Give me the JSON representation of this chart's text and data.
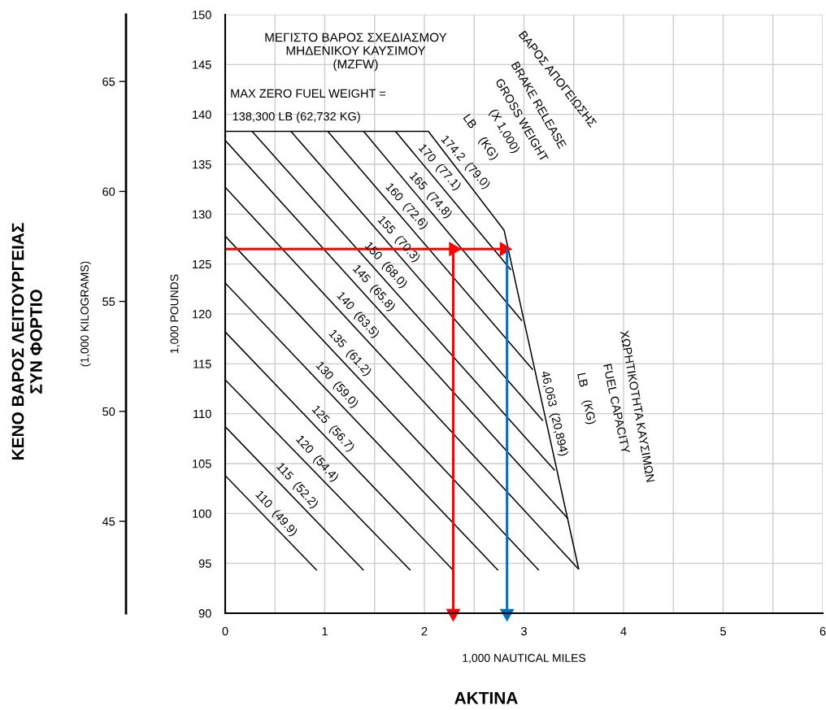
{
  "chart_data": {
    "type": "line",
    "xlabel": "1,000 NAUTICAL MILES",
    "ylabel": "1,000 POUNDS",
    "y2label": "(1,000 KILOGRAMS)",
    "xlim": [
      0,
      6
    ],
    "ylim": [
      90,
      150
    ],
    "y2lim": [
      40.82,
      68.04
    ],
    "xticks": [
      0,
      {
        "value": 0.5,
        "label": null
      },
      1,
      {
        "value": 1.5,
        "label": null
      },
      2,
      {
        "value": 2.5,
        "label": null
      },
      3,
      {
        "value": 3.5,
        "label": null
      },
      4,
      {
        "value": 4.5,
        "label": null
      },
      5,
      {
        "value": 5.5,
        "label": null
      },
      6
    ],
    "yticks": [
      90,
      95,
      100,
      105,
      110,
      115,
      120,
      125,
      130,
      135,
      140,
      145,
      150
    ],
    "y2ticks": [
      45,
      50,
      55,
      60,
      65
    ],
    "grid": true,
    "series": [
      {
        "color": "#000000",
        "x": [
          0,
          2.04,
          2.8,
          3.55
        ],
        "values": [
          138.3,
          138.3,
          128.4,
          94.4
        ]
      },
      {
        "color": "#000000",
        "x": [
          1.71,
          2.87
        ],
        "values": [
          138.3,
          124.4
        ]
      },
      {
        "color": "#000000",
        "x": [
          1.39,
          2.98
        ],
        "values": [
          138.3,
          119.3
        ]
      },
      {
        "color": "#000000",
        "x": [
          1.03,
          3.09
        ],
        "values": [
          138.3,
          114.4
        ]
      },
      {
        "color": "#000000",
        "x": [
          0.66,
          3.19
        ],
        "values": [
          138.3,
          109.3
        ]
      },
      {
        "color": "#000000",
        "x": [
          0.27,
          3.31
        ],
        "values": [
          138.3,
          104.3
        ]
      },
      {
        "color": "#000000",
        "x": [
          0,
          3.44
        ],
        "values": [
          137.4,
          99.5
        ]
      },
      {
        "color": "#000000",
        "x": [
          0,
          3.55
        ],
        "values": [
          132.7,
          94.4
        ]
      },
      {
        "color": "#000000",
        "x": [
          0,
          3.15
        ],
        "values": [
          127.8,
          94.3
        ]
      },
      {
        "color": "#000000",
        "x": [
          0,
          2.74
        ],
        "values": [
          123.1,
          94.3
        ]
      },
      {
        "color": "#000000",
        "x": [
          0,
          2.29
        ],
        "values": [
          118.2,
          94.3
        ]
      },
      {
        "color": "#000000",
        "x": [
          0,
          1.86
        ],
        "values": [
          113.4,
          94.3
        ]
      },
      {
        "color": "#000000",
        "x": [
          0,
          1.39
        ],
        "values": [
          108.7,
          94.3
        ]
      },
      {
        "color": "#000000",
        "x": [
          0,
          0.92
        ],
        "values": [
          103.8,
          94.3
        ]
      },
      {
        "color": "#ff0000",
        "x": [
          0,
          2.29,
          2.8
        ],
        "values": [
          126.5,
          126.5,
          126.5
        ],
        "marker": "triangle"
      },
      {
        "color": "#ff0000",
        "x": [
          2.29,
          2.29
        ],
        "values": [
          126.5,
          90
        ],
        "marker": "triangle"
      },
      {
        "color": "#0070c0",
        "x": [
          2.83,
          2.83
        ],
        "values": [
          126.5,
          90
        ],
        "marker": "triangle"
      }
    ],
    "annotations": [
      "ΜΕΓΙΣΤΟ ΒΑΡΟΣ ΣΧΕΔΙΑΣΜΟΥ\nΜΗΔΕΝΙΚΟΥ ΚΑΥΣΙΜΟΥ\n(MZFW)",
      "MAX ZERO FUEL WEIGHT =",
      "138,300 LB (62,732 KG)",
      "ΒΑΡΟΣ ΑΠΟΓΕΙΩΣΗΣ",
      "BRAKE RELEASE",
      "GROSS WEIGHT",
      "(X 1,000)",
      "LB    (KG)",
      "ΧΩΡΗΤΙΚΟΤΗΤΑ ΚΑΥΣΙΜΩΝ",
      "FUEL CAPACITY",
      "LB    (KG)",
      "46,063  (20,894)",
      "ΚΕΝΟ ΒΑΡΟΣ ΛΕΙΤΟΥΡΓΕΙΑΣ\nΣΥΝ ΦΟΡΤΙΟ",
      "ΑΚΤΙΝΑ",
      {
        "text": "174.2  (79.0)",
        "x": 2.33,
        "y": 134.5
      },
      {
        "text": "170  (77.1)",
        "x": 2.07,
        "y": 134.0
      },
      {
        "text": "165  (74.8)",
        "x": 1.98,
        "y": 131.2
      },
      {
        "text": "160  (72.6)",
        "x": 1.74,
        "y": 130.1
      },
      {
        "text": "155  (70.3)",
        "x": 1.66,
        "y": 126.8
      },
      {
        "text": "150  (68.0)",
        "x": 1.53,
        "y": 124.2
      },
      {
        "text": "145  (65.8)",
        "x": 1.41,
        "y": 121.9
      },
      {
        "text": "140  (63.5)",
        "x": 1.25,
        "y": 119.2
      },
      {
        "text": "135  (61.2)",
        "x": 1.17,
        "y": 115.4
      },
      {
        "text": "130  (59.0)",
        "x": 1.04,
        "y": 112.2
      },
      {
        "text": "125  (56.7)",
        "x": 1.0,
        "y": 107.8
      },
      {
        "text": "120  (54.4)",
        "x": 0.84,
        "y": 104.8
      },
      {
        "text": "115  (52.2)",
        "x": 0.64,
        "y": 102.1
      },
      {
        "text": "110  (49.9)",
        "x": 0.43,
        "y": 99.3
      }
    ]
  }
}
